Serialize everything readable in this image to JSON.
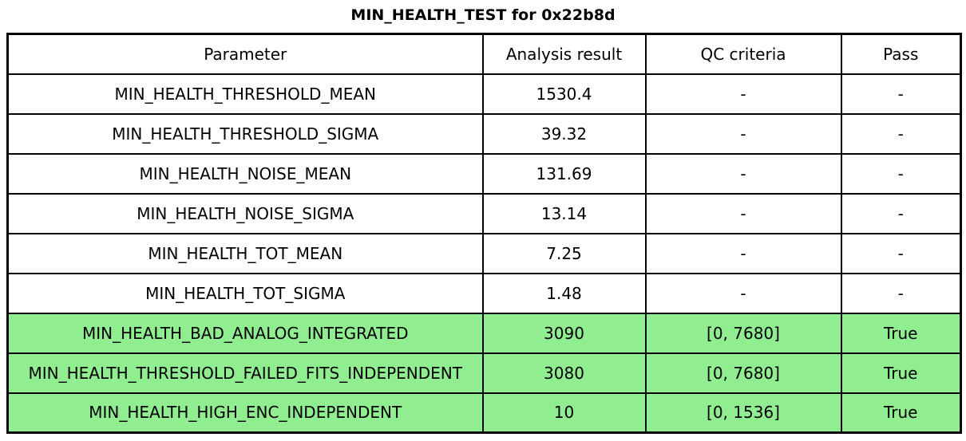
{
  "title": "MIN_HEALTH_TEST for 0x22b8d",
  "colors": {
    "pass_row_green": "#90ee90",
    "border_black": "#000000",
    "background_white": "#ffffff"
  },
  "chart_data": {
    "type": "table",
    "title": "MIN_HEALTH_TEST for 0x22b8d",
    "columns": [
      "Parameter",
      "Analysis result",
      "QC criteria",
      "Pass"
    ],
    "rows": [
      {
        "cells": [
          "MIN_HEALTH_THRESHOLD_MEAN",
          "1530.4",
          "-",
          "-"
        ],
        "highlight": false
      },
      {
        "cells": [
          "MIN_HEALTH_THRESHOLD_SIGMA",
          "39.32",
          "-",
          "-"
        ],
        "highlight": false
      },
      {
        "cells": [
          "MIN_HEALTH_NOISE_MEAN",
          "131.69",
          "-",
          "-"
        ],
        "highlight": false
      },
      {
        "cells": [
          "MIN_HEALTH_NOISE_SIGMA",
          "13.14",
          "-",
          "-"
        ],
        "highlight": false
      },
      {
        "cells": [
          "MIN_HEALTH_TOT_MEAN",
          "7.25",
          "-",
          "-"
        ],
        "highlight": false
      },
      {
        "cells": [
          "MIN_HEALTH_TOT_SIGMA",
          "1.48",
          "-",
          "-"
        ],
        "highlight": false
      },
      {
        "cells": [
          "MIN_HEALTH_BAD_ANALOG_INTEGRATED",
          "3090",
          "[0, 7680]",
          "True"
        ],
        "highlight": true
      },
      {
        "cells": [
          "MIN_HEALTH_THRESHOLD_FAILED_FITS_INDEPENDENT",
          "3080",
          "[0, 7680]",
          "True"
        ],
        "highlight": true
      },
      {
        "cells": [
          "MIN_HEALTH_HIGH_ENC_INDEPENDENT",
          "10",
          "[0, 1536]",
          "True"
        ],
        "highlight": true
      }
    ],
    "layout": {
      "header_row": true,
      "grid": "full",
      "highlight_meaning": "rows with QC criteria evaluated and passed"
    }
  }
}
